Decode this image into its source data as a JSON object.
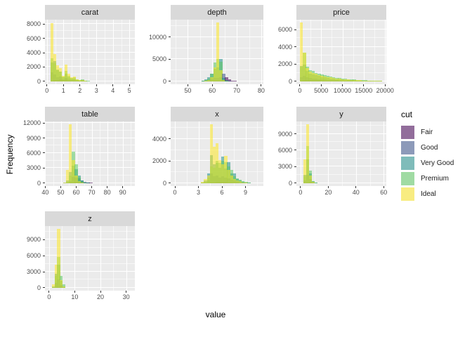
{
  "axis": {
    "x_label": "value",
    "y_label": "Frequency"
  },
  "legend": {
    "title": "cut",
    "entries": [
      {
        "label": "Fair",
        "color": "#926D9B"
      },
      {
        "label": "Good",
        "color": "#8D9AB9"
      },
      {
        "label": "Very Good",
        "color": "#7FBCBA"
      },
      {
        "label": "Premium",
        "color": "#A0DBA3"
      },
      {
        "label": "Ideal",
        "color": "#F8EC81"
      }
    ]
  },
  "style": {
    "panel_bg": "#EBEBEB",
    "strip_bg": "#D9D9D9",
    "grid_major": "#FFFFFF",
    "tick_color": "#333333",
    "tick_label_color": "#4D4D4D"
  },
  "cut_colors": {
    "order": [
      "Fair",
      "Good",
      "Very Good",
      "Premium",
      "Ideal"
    ],
    "base": [
      "#440154",
      "#3B528B",
      "#21908C",
      "#5DC863",
      "#FDE725"
    ],
    "alpha": 0.55,
    "rgba": [
      "rgba(68,1,84,0.55)",
      "rgba(59,82,139,0.55)",
      "rgba(33,144,140,0.55)",
      "rgba(93,200,99,0.55)",
      "rgba(253,231,37,0.55)"
    ]
  },
  "chart_data": {
    "type": "bar",
    "subtype": "overlaid-histograms-faceted",
    "series_variable": "cut",
    "series_order": [
      "Fair",
      "Good",
      "Very Good",
      "Premium",
      "Ideal"
    ],
    "xlabel": "value",
    "ylabel": "Frequency",
    "legend_position": "right",
    "grid": "on",
    "bin_format": "[bin_left, Fair, Good, VeryGood, Premium, Ideal]",
    "facets": [
      {
        "name": "carat",
        "grid": [
          0,
          0
        ],
        "xlim": [
          -0.12,
          5.33
        ],
        "xticks": [
          0,
          1,
          2,
          3,
          4,
          5
        ],
        "ymax": 8200,
        "yticks": [
          0,
          2000,
          4000,
          6000,
          8000
        ],
        "binwidth": 0.17,
        "bins": [
          [
            0.2,
            100,
            1275,
            2600,
            3250,
            8127
          ],
          [
            0.37,
            170,
            950,
            2800,
            2500,
            3800
          ],
          [
            0.54,
            220,
            600,
            1600,
            1700,
            2250
          ],
          [
            0.71,
            280,
            700,
            1400,
            1400,
            1800
          ],
          [
            0.88,
            150,
            300,
            600,
            700,
            800
          ],
          [
            1.05,
            250,
            500,
            1100,
            1500,
            2300
          ],
          [
            1.22,
            120,
            250,
            600,
            800,
            1100
          ],
          [
            1.39,
            80,
            150,
            350,
            500,
            600
          ],
          [
            1.56,
            90,
            180,
            400,
            600,
            700
          ],
          [
            1.73,
            50,
            90,
            200,
            300,
            250
          ],
          [
            1.9,
            40,
            60,
            120,
            200,
            150
          ],
          [
            2.07,
            60,
            80,
            150,
            250,
            180
          ],
          [
            2.24,
            20,
            30,
            60,
            90,
            60
          ],
          [
            2.41,
            10,
            15,
            30,
            40,
            25
          ],
          [
            2.58,
            5,
            8,
            15,
            20,
            10
          ],
          [
            2.75,
            3,
            5,
            8,
            10,
            5
          ],
          [
            2.92,
            2,
            3,
            4,
            5,
            3
          ],
          [
            3.26,
            1,
            1,
            2,
            2,
            1
          ],
          [
            3.94,
            1,
            0,
            1,
            1,
            0
          ],
          [
            4.45,
            1,
            0,
            0,
            0,
            0
          ],
          [
            4.96,
            1,
            0,
            0,
            0,
            0
          ]
        ]
      },
      {
        "name": "depth",
        "grid": [
          0,
          1
        ],
        "xlim": [
          43.0,
          80.9
        ],
        "xticks": [
          50,
          60,
          70,
          80
        ],
        "ymax": 13300,
        "yticks": [
          0,
          5000,
          10000
        ],
        "binwidth": 1.2,
        "bins": [
          [
            54.4,
            8,
            20,
            40,
            20,
            8
          ],
          [
            55.6,
            15,
            60,
            180,
            90,
            40
          ],
          [
            56.8,
            25,
            150,
            450,
            250,
            140
          ],
          [
            58.0,
            45,
            350,
            900,
            600,
            350
          ],
          [
            59.2,
            70,
            550,
            1700,
            1700,
            900
          ],
          [
            60.4,
            100,
            700,
            2800,
            4300,
            3200
          ],
          [
            61.6,
            150,
            800,
            3200,
            5000,
            13300
          ],
          [
            62.8,
            200,
            900,
            5100,
            4500,
            2500
          ],
          [
            64.0,
            250,
            1700,
            800,
            500,
            300
          ],
          [
            65.2,
            900,
            350,
            150,
            80,
            40
          ],
          [
            66.4,
            400,
            120,
            40,
            20,
            10
          ],
          [
            67.6,
            180,
            40,
            12,
            6,
            3
          ],
          [
            68.8,
            80,
            15,
            4,
            2,
            1
          ],
          [
            70.0,
            30,
            5,
            2,
            1,
            0
          ],
          [
            71.2,
            14,
            2,
            1,
            0,
            0
          ],
          [
            73.6,
            5,
            1,
            0,
            0,
            0
          ],
          [
            76.0,
            2,
            0,
            0,
            0,
            0
          ],
          [
            78.4,
            1,
            0,
            0,
            0,
            0
          ]
        ]
      },
      {
        "name": "price",
        "grid": [
          0,
          2
        ],
        "xlim": [
          -800,
          20300
        ],
        "xticks": [
          0,
          5000,
          10000,
          15000,
          20000
        ],
        "ymax": 6800,
        "yticks": [
          0,
          2000,
          4000,
          6000
        ],
        "binwidth": 690,
        "bins": [
          [
            0,
            40,
            500,
            1800,
            1700,
            6800
          ],
          [
            690,
            180,
            650,
            1900,
            3300,
            3300
          ],
          [
            1380,
            150,
            500,
            1200,
            1700,
            1500
          ],
          [
            2070,
            140,
            400,
            900,
            1300,
            1100
          ],
          [
            2760,
            130,
            350,
            800,
            1200,
            950
          ],
          [
            3450,
            120,
            300,
            700,
            1000,
            850
          ],
          [
            4140,
            110,
            260,
            600,
            900,
            750
          ],
          [
            4830,
            100,
            230,
            500,
            800,
            650
          ],
          [
            5520,
            90,
            200,
            450,
            700,
            560
          ],
          [
            6210,
            80,
            180,
            400,
            620,
            500
          ],
          [
            6900,
            70,
            160,
            350,
            550,
            450
          ],
          [
            7590,
            60,
            140,
            300,
            480,
            400
          ],
          [
            8280,
            55,
            120,
            260,
            420,
            350
          ],
          [
            8970,
            50,
            105,
            230,
            370,
            310
          ],
          [
            9660,
            45,
            90,
            200,
            330,
            270
          ],
          [
            10350,
            40,
            80,
            175,
            290,
            240
          ],
          [
            11040,
            35,
            70,
            150,
            250,
            210
          ],
          [
            11730,
            30,
            60,
            130,
            220,
            185
          ],
          [
            12420,
            28,
            52,
            115,
            195,
            160
          ],
          [
            13110,
            25,
            45,
            100,
            170,
            140
          ],
          [
            13800,
            22,
            40,
            85,
            150,
            120
          ],
          [
            14490,
            20,
            35,
            75,
            130,
            105
          ],
          [
            15180,
            18,
            30,
            65,
            115,
            90
          ],
          [
            15870,
            15,
            26,
            55,
            100,
            80
          ],
          [
            16560,
            13,
            22,
            48,
            88,
            70
          ],
          [
            17250,
            12,
            19,
            42,
            77,
            60
          ],
          [
            17940,
            10,
            17,
            36,
            67,
            52
          ],
          [
            18630,
            9,
            15,
            31,
            58,
            45
          ]
        ]
      },
      {
        "name": "table",
        "grid": [
          1,
          0
        ],
        "xlim": [
          39.8,
          97.9
        ],
        "xticks": [
          40,
          50,
          60,
          70,
          80,
          90
        ],
        "ymax": 11700,
        "yticks": [
          0,
          3000,
          6000,
          9000,
          12000
        ],
        "binwidth": 1.9,
        "bins": [
          [
            49.5,
            4,
            4,
            5,
            2,
            2
          ],
          [
            51.4,
            20,
            30,
            60,
            20,
            100
          ],
          [
            53.3,
            30,
            100,
            500,
            200,
            2600
          ],
          [
            55.2,
            60,
            400,
            2200,
            1500,
            11700
          ],
          [
            57.1,
            150,
            1200,
            3500,
            6300,
            4600
          ],
          [
            59.0,
            250,
            1100,
            2800,
            3700,
            1500
          ],
          [
            60.9,
            300,
            900,
            1500,
            1300,
            400
          ],
          [
            62.8,
            250,
            600,
            500,
            350,
            120
          ],
          [
            64.7,
            180,
            250,
            150,
            100,
            40
          ],
          [
            66.6,
            100,
            80,
            50,
            30,
            10
          ],
          [
            68.5,
            50,
            25,
            15,
            8,
            4
          ],
          [
            70.4,
            20,
            8,
            5,
            2,
            1
          ],
          [
            93.1,
            1,
            0,
            0,
            0,
            0
          ]
        ]
      },
      {
        "name": "x",
        "grid": [
          1,
          1
        ],
        "xlim": [
          -0.54,
          11.28
        ],
        "xticks": [
          0,
          3,
          6,
          9
        ],
        "ymax": 5300,
        "yticks": [
          0,
          2000,
          4000
        ],
        "binwidth": 0.37,
        "bins": [
          [
            3.33,
            5,
            30,
            60,
            30,
            100
          ],
          [
            3.7,
            10,
            80,
            250,
            120,
            400
          ],
          [
            4.07,
            20,
            250,
            900,
            500,
            700
          ],
          [
            4.44,
            60,
            900,
            2500,
            1500,
            5300
          ],
          [
            4.81,
            80,
            600,
            1700,
            1400,
            3300
          ],
          [
            5.18,
            100,
            700,
            1800,
            2000,
            3600
          ],
          [
            5.55,
            90,
            500,
            1400,
            1800,
            2100
          ],
          [
            5.92,
            100,
            600,
            2400,
            2000,
            1700
          ],
          [
            6.29,
            90,
            500,
            1300,
            1900,
            2450
          ],
          [
            6.66,
            80,
            450,
            1900,
            1500,
            1200
          ],
          [
            7.03,
            60,
            300,
            900,
            1200,
            700
          ],
          [
            7.4,
            40,
            250,
            900,
            600,
            400
          ],
          [
            7.77,
            30,
            150,
            400,
            450,
            250
          ],
          [
            8.14,
            20,
            90,
            250,
            280,
            150
          ],
          [
            8.51,
            12,
            50,
            140,
            160,
            80
          ],
          [
            8.88,
            8,
            30,
            80,
            90,
            40
          ],
          [
            9.25,
            5,
            15,
            40,
            45,
            20
          ],
          [
            9.62,
            3,
            8,
            20,
            22,
            10
          ],
          [
            9.99,
            2,
            4,
            10,
            10,
            5
          ]
        ]
      },
      {
        "name": "y",
        "grid": [
          1,
          2
        ],
        "xlim": [
          -3.0,
          61.9
        ],
        "xticks": [
          0,
          20,
          40,
          60
        ],
        "ymax": 10700,
        "yticks": [
          0,
          3000,
          6000,
          9000
        ],
        "binwidth": 2.0,
        "bins": [
          [
            2,
            60,
            500,
            1500,
            1200,
            4300
          ],
          [
            4,
            120,
            1500,
            4300,
            6700,
            10700
          ],
          [
            6,
            200,
            700,
            1800,
            2300,
            1400
          ],
          [
            8,
            60,
            150,
            350,
            400,
            250
          ],
          [
            10,
            20,
            30,
            60,
            70,
            40
          ],
          [
            12,
            5,
            8,
            15,
            15,
            8
          ],
          [
            30,
            0,
            0,
            1,
            0,
            0
          ],
          [
            58,
            0,
            0,
            0,
            1,
            1
          ]
        ]
      },
      {
        "name": "z",
        "grid": [
          2,
          0
        ],
        "xlim": [
          -1.6,
          33.4
        ],
        "xticks": [
          0,
          10,
          20,
          30
        ],
        "ymax": 11000,
        "yticks": [
          0,
          3000,
          6000,
          9000
        ],
        "binwidth": 1.06,
        "bins": [
          [
            1.05,
            10,
            100,
            250,
            150,
            600
          ],
          [
            2.11,
            80,
            900,
            2600,
            2200,
            4300
          ],
          [
            3.17,
            150,
            1600,
            4300,
            5800,
            11000
          ],
          [
            4.23,
            100,
            500,
            1300,
            2200,
            1400
          ],
          [
            5.29,
            30,
            100,
            250,
            700,
            300
          ],
          [
            6.35,
            5,
            10,
            20,
            30,
            15
          ],
          [
            31.0,
            0,
            0,
            1,
            0,
            0
          ]
        ]
      }
    ]
  }
}
